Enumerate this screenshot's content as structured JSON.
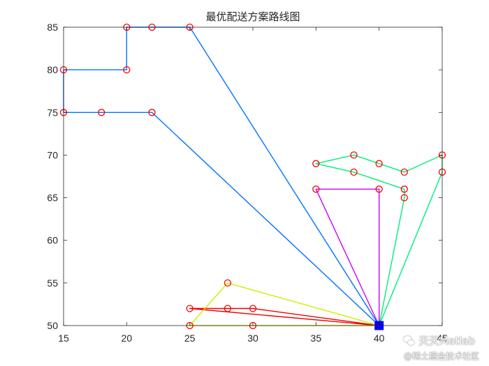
{
  "chart_data": {
    "type": "line",
    "title": "最优配送方案路线图",
    "xlabel": "",
    "ylabel": "",
    "xlim": [
      15,
      45
    ],
    "ylim": [
      50,
      85
    ],
    "xticks": [
      15,
      20,
      25,
      30,
      35,
      40,
      45
    ],
    "yticks": [
      50,
      55,
      60,
      65,
      70,
      75,
      80,
      85
    ],
    "grid": false,
    "depot": {
      "x": 40,
      "y": 50,
      "color": "#0000ff"
    },
    "routes": [
      {
        "color": "#0072ff",
        "points": [
          [
            40,
            50
          ],
          [
            22,
            75
          ],
          [
            18,
            75
          ],
          [
            15,
            75
          ],
          [
            15,
            80
          ],
          [
            20,
            80
          ],
          [
            20,
            85
          ],
          [
            22,
            85
          ],
          [
            25,
            85
          ],
          [
            40,
            50
          ]
        ]
      },
      {
        "color": "#00ee77",
        "points": [
          [
            40,
            50
          ],
          [
            45,
            68
          ],
          [
            45,
            70
          ],
          [
            42,
            68
          ],
          [
            40,
            69
          ],
          [
            38,
            70
          ],
          [
            35,
            69
          ],
          [
            38,
            68
          ],
          [
            42,
            66
          ],
          [
            42,
            65
          ],
          [
            40,
            50
          ]
        ]
      },
      {
        "color": "#cc00ff",
        "points": [
          [
            40,
            50
          ],
          [
            40,
            66
          ],
          [
            35,
            66
          ],
          [
            40,
            50
          ]
        ]
      },
      {
        "color": "#ee0000",
        "points": [
          [
            40,
            50
          ],
          [
            30,
            52
          ],
          [
            28,
            52
          ],
          [
            25,
            52
          ],
          [
            40,
            50
          ]
        ]
      },
      {
        "color": "#ccee00",
        "points": [
          [
            40,
            50
          ],
          [
            28,
            55
          ],
          [
            25,
            50
          ],
          [
            30,
            50
          ],
          [
            40,
            50
          ]
        ]
      }
    ],
    "customers": [
      [
        22,
        75
      ],
      [
        18,
        75
      ],
      [
        15,
        75
      ],
      [
        15,
        80
      ],
      [
        20,
        80
      ],
      [
        20,
        85
      ],
      [
        22,
        85
      ],
      [
        25,
        85
      ],
      [
        45,
        68
      ],
      [
        45,
        70
      ],
      [
        42,
        68
      ],
      [
        40,
        69
      ],
      [
        38,
        70
      ],
      [
        35,
        69
      ],
      [
        38,
        68
      ],
      [
        42,
        66
      ],
      [
        42,
        65
      ],
      [
        40,
        66
      ],
      [
        35,
        66
      ],
      [
        30,
        52
      ],
      [
        28,
        52
      ],
      [
        25,
        52
      ],
      [
        28,
        55
      ],
      [
        25,
        50
      ],
      [
        30,
        50
      ]
    ],
    "marker_color": "#ff0000"
  },
  "watermark": {
    "line1": "天天Matlab",
    "line2": "@稀土掘金技术社区"
  }
}
